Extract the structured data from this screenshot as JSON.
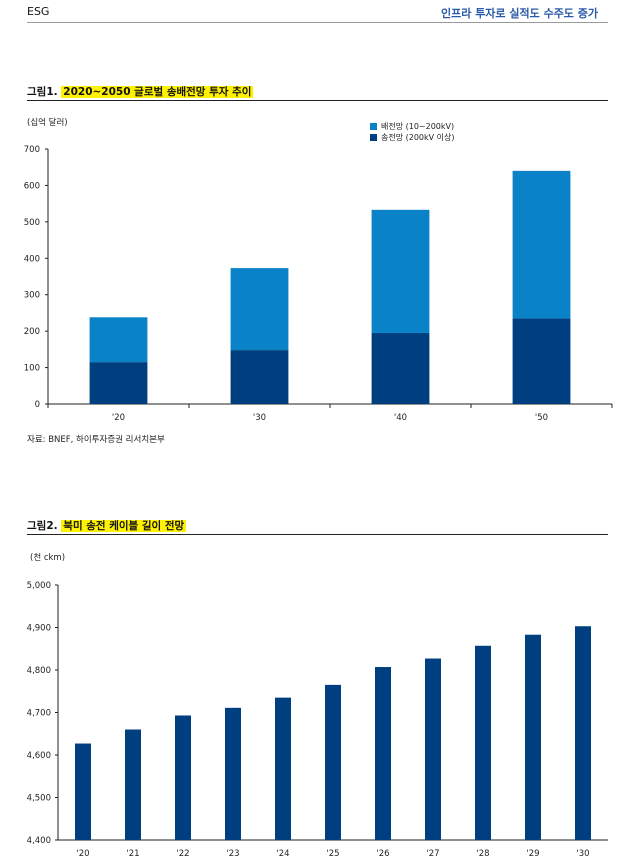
{
  "header": {
    "left": "ESG",
    "right": "인프라 투자로 실적도 수주도 증가"
  },
  "figure1": {
    "prefix": "그림1.",
    "title": "2020~2050 글로벌 송배전망 투자 추이",
    "unit": "(십억 달러)",
    "source": "자료: BNEF, 하이투자증권 리서치본부"
  },
  "figure2": {
    "prefix": "그림2.",
    "title": "북미 송전 케이블 길이 전망",
    "unit": "(천 ckm)"
  },
  "chart_data": [
    {
      "type": "bar",
      "stacked": true,
      "title": "2020~2050 글로벌 송배전망 투자 추이",
      "ylabel": "(십억 달러)",
      "categories": [
        "'20",
        "'30",
        "'40",
        "'50"
      ],
      "series": [
        {
          "name": "송전망 (200kV 이상)",
          "color": "#003f7f",
          "values": [
            115,
            148,
            195,
            235
          ]
        },
        {
          "name": "배전망 (10~200kV)",
          "color": "#0a82c8",
          "values": [
            123,
            225,
            338,
            405
          ]
        }
      ],
      "ylim": [
        0,
        700
      ],
      "yticks": [
        "0",
        "100",
        "200",
        "300",
        "400",
        "500",
        "600",
        "700"
      ],
      "legend": "top-right",
      "grid": false
    },
    {
      "type": "bar",
      "title": "북미 송전 케이블 길이 전망",
      "ylabel": "(천 ckm)",
      "categories": [
        "'20",
        "'21",
        "'22",
        "'23",
        "'24",
        "'25",
        "'26",
        "'27",
        "'28",
        "'29",
        "'30"
      ],
      "series": [
        {
          "color": "#003f7f",
          "values": [
            4627,
            4660,
            4693,
            4711,
            4735,
            4765,
            4807,
            4827,
            4857,
            4883,
            4903
          ]
        }
      ],
      "ylim": [
        4400,
        5000
      ],
      "yticks": [
        "4,400",
        "4,500",
        "4,600",
        "4,700",
        "4,800",
        "4,900",
        "5,000"
      ],
      "grid": false
    }
  ]
}
